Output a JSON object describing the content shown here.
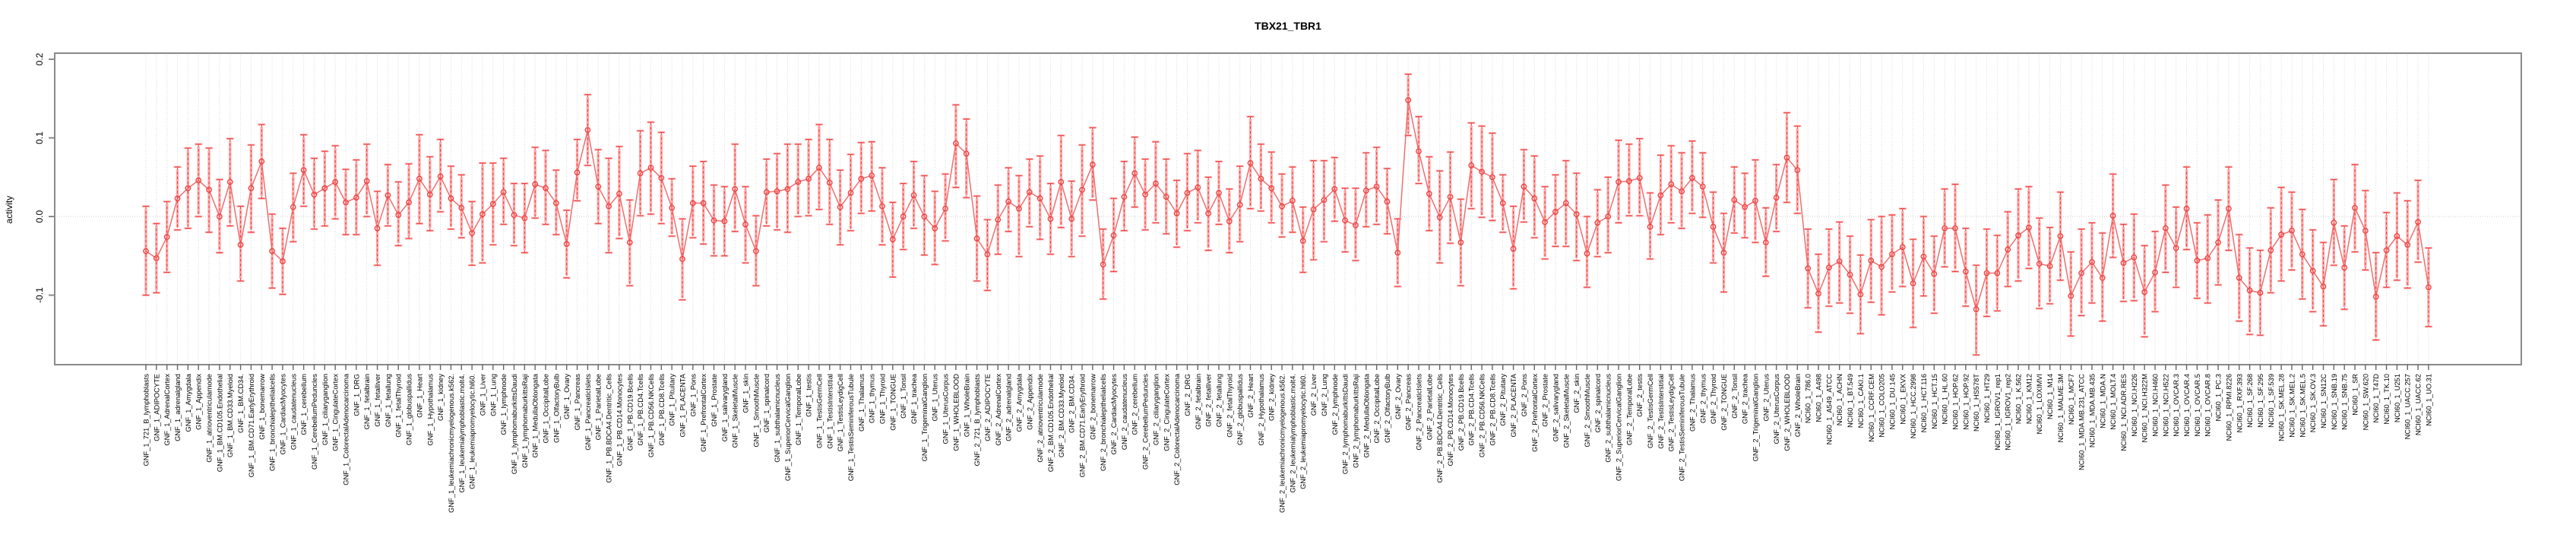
{
  "chart_data": {
    "type": "pointrange",
    "title": "TBX21_TBR1",
    "ylabel": "activity",
    "xlabel": "",
    "ylim": [
      -0.19,
      0.21
    ],
    "yticks": [
      0.2,
      0.1,
      0.0,
      -0.1
    ],
    "ytick_labels": [
      "0.2",
      "0.1",
      "0.0",
      "-0.1"
    ],
    "grid": "vertical-dotted-per-category-plus-zero-line",
    "legend_position": "none",
    "colors": {
      "point_and_ci": "#ee4444",
      "ci_band_thick": "#ffaaaa",
      "connect_line": "#ef6f6f",
      "frame": "#8a8a8a",
      "gridline": "#d9d9d9",
      "zero_line": "#cccccc",
      "tick": "#666666",
      "text": "#000000",
      "background": "#ffffff"
    },
    "groups": [
      {
        "prefix": "GNF_1_",
        "tissues": [
          "721_B_lymphoblasts",
          "ADIPOCYTE",
          "AdrenalCortex",
          "adrenalgland",
          "Amygdala",
          "Appendix",
          "atrioventricularnode",
          "BM.CD105.Endothelial",
          "BM.CD33.Myeloid",
          "BM.CD34.",
          "BM.CD71.EarlyErythroid",
          "bonemarrow",
          "bronchialepithelialcells",
          "CardiacMyocytes",
          "caudatenucleus",
          "cerebellum",
          "CerebellumPeduncles",
          "ciliaryganglion",
          "CingulateCortex",
          "ColorectalAdenocarcinoma",
          "DRG",
          "fetalbrain",
          "fetalliver",
          "fetallung",
          "fetalThyroid",
          "globuspallidus",
          "Heart",
          "Hypothalamus",
          "kidney",
          "leukemiachronicmyelogenous.k562.",
          "leukemialymphoblastic.molt4.",
          "leukemiapromyelocytic.hl60.",
          "Liver",
          "Lung",
          "lymphnode",
          "lymphomaburkittsDaudi",
          "lymphomaburkittsRaji",
          "MedullaOblongata",
          "OccipitalLobe",
          "OlfactoryBulb",
          "Ovary",
          "Pancreas",
          "PancreaticIslets",
          "ParietalLobe",
          "PB.BDCA4.Dentritic_Cells",
          "PB.CD14.Monocytes",
          "PB.CD19.Bcells",
          "PB.CD4.Tcells",
          "PB.CD56.NKCells",
          "PB.CD8.Tcells",
          "Pituitary",
          "PLACENTA",
          "Pons",
          "PrefrontalCortex",
          "Prostate",
          "salivarygland",
          "SkeletalMuscle",
          "skin",
          "SmoothMuscle",
          "spinalcord",
          "subthalamicnucleus",
          "SuperiorCervicalGanglion",
          "TemporalLobe",
          "testis",
          "TestisGermCell",
          "TestisInterstitial",
          "TestisLeydigCell",
          "TestisSeminiferousTubule",
          "Thalamus",
          "thymus",
          "Thyroid",
          "TONGUE",
          "Tonsil",
          "trachea",
          "TrigeminalGanglion",
          "Uterus",
          "UterusCorpus",
          "WHOLEBLOOD",
          "WholeBrain"
        ],
        "values": [
          -0.044,
          -0.053,
          -0.026,
          0.023,
          0.036,
          0.046,
          0.034,
          0.0,
          0.044,
          -0.036,
          0.036,
          0.07,
          -0.044,
          -0.057,
          0.012,
          0.059,
          0.028,
          0.036,
          0.044,
          0.018,
          0.024,
          0.045,
          -0.015,
          0.027,
          0.002,
          0.018,
          0.048,
          0.028,
          0.051,
          0.023,
          0.011,
          -0.021,
          0.003,
          0.016,
          0.031,
          0.002,
          -0.002,
          0.041,
          0.036,
          0.017,
          -0.035,
          0.056,
          0.11,
          0.038,
          0.013,
          0.029,
          -0.033,
          0.055,
          0.062,
          0.049,
          0.011,
          -0.054,
          0.017,
          0.017,
          -0.005,
          -0.006,
          0.035,
          -0.01,
          -0.044,
          0.031,
          0.032,
          0.035,
          0.044,
          0.048,
          0.062,
          0.043,
          0.012,
          0.03,
          0.048,
          0.052,
          0.013,
          -0.029,
          0.0,
          0.027,
          0.0,
          -0.015,
          0.01,
          0.093,
          0.08
        ],
        "lo": [
          -0.1,
          -0.097,
          -0.071,
          -0.017,
          -0.015,
          0.0,
          -0.02,
          -0.046,
          -0.012,
          -0.082,
          -0.02,
          0.023,
          -0.091,
          -0.099,
          -0.032,
          0.013,
          -0.016,
          -0.012,
          -0.003,
          -0.023,
          -0.023,
          0.0,
          -0.062,
          -0.012,
          -0.037,
          -0.028,
          -0.009,
          -0.018,
          0.006,
          -0.016,
          -0.027,
          -0.062,
          -0.059,
          -0.036,
          -0.01,
          -0.037,
          -0.046,
          -0.002,
          -0.01,
          -0.023,
          -0.078,
          0.02,
          0.065,
          -0.009,
          -0.046,
          -0.028,
          -0.088,
          0.001,
          0.003,
          -0.009,
          -0.025,
          -0.106,
          -0.027,
          -0.035,
          -0.05,
          -0.05,
          -0.019,
          -0.059,
          -0.088,
          -0.012,
          -0.017,
          -0.02,
          0.0,
          0.001,
          0.009,
          -0.01,
          -0.036,
          -0.018,
          0.004,
          0.007,
          -0.036,
          -0.077,
          -0.042,
          -0.015,
          -0.049,
          -0.061,
          -0.031,
          0.037,
          0.024
        ],
        "hi": [
          0.013,
          -0.009,
          0.019,
          0.063,
          0.087,
          0.092,
          0.087,
          0.047,
          0.099,
          0.013,
          0.091,
          0.117,
          0.003,
          -0.015,
          0.055,
          0.104,
          0.074,
          0.083,
          0.09,
          0.06,
          0.072,
          0.092,
          0.032,
          0.066,
          0.044,
          0.067,
          0.104,
          0.076,
          0.098,
          0.064,
          0.053,
          0.019,
          0.068,
          0.068,
          0.074,
          0.042,
          0.042,
          0.088,
          0.084,
          0.059,
          0.008,
          0.098,
          0.155,
          0.085,
          0.074,
          0.089,
          0.021,
          0.109,
          0.12,
          0.107,
          0.048,
          -0.003,
          0.064,
          0.07,
          0.04,
          0.038,
          0.092,
          0.038,
          0.001,
          0.073,
          0.08,
          0.092,
          0.092,
          0.098,
          0.117,
          0.098,
          0.059,
          0.079,
          0.094,
          0.095,
          0.062,
          0.018,
          0.042,
          0.07,
          0.052,
          0.032,
          0.054,
          0.142,
          0.124
        ]
      },
      {
        "prefix": "GNF_2_",
        "tissues": [
          "721_B_lymphoblasts",
          "ADIPOCYTE",
          "AdrenalCortex",
          "adrenalgland",
          "Amygdala",
          "Appendix",
          "atrioventricularnode",
          "BM.CD105.Endothelial",
          "BM.CD33.Myeloid",
          "BM.CD34.",
          "BM.CD71.EarlyErythroid",
          "bonemarrow",
          "bronchialepithelialcells",
          "CardiacMyocytes",
          "caudatenucleus",
          "cerebellum",
          "CerebellumPeduncles",
          "ciliaryganglion",
          "CingulateCortex",
          "ColorectalAdenocarcinoma",
          "DRG",
          "fetalbrain",
          "fetalliver",
          "fetallung",
          "fetalThyroid",
          "globuspallidus",
          "Heart",
          "Hypothalamus",
          "kidney",
          "leukemiachronicmyelogenous.k562.",
          "leukemialymphoblastic.molt4.",
          "leukemiapromyelocytic.hl60.",
          "Liver",
          "Lung",
          "lymphnode",
          "lymphomaburkittsDaudi",
          "lymphomaburkittsRaji",
          "MedullaOblongata",
          "OccipitalLobe",
          "OlfactoryBulb",
          "Ovary",
          "Pancreas",
          "PancreaticIslets",
          "ParietalLobe",
          "PB.BDCA4.Dentritic_Cells",
          "PB.CD14.Monocytes",
          "PB.CD19.Bcells",
          "PB.CD4.Tcells",
          "PB.CD56.NKCells",
          "PB.CD8.Tcells",
          "Pituitary",
          "PLACENTA",
          "Pons",
          "PrefrontalCortex",
          "Prostate",
          "salivarygland",
          "SkeletalMuscle",
          "skin",
          "SmoothMuscle",
          "spinalcord",
          "subthalamicnucleus",
          "SuperiorCervicalGanglion",
          "TemporalLobe",
          "testis",
          "TestisGermCell",
          "TestisInterstitial",
          "TestisLeydigCell",
          "TestisSeminiferousTubule",
          "Thalamus",
          "thymus",
          "Thyroid",
          "TONGUE",
          "Tonsil",
          "trachea",
          "TrigeminalGanglion",
          "Uterus",
          "UterusCorpus",
          "WHOLEBLOOD",
          "WholeBrain"
        ],
        "values": [
          -0.028,
          -0.048,
          -0.004,
          0.019,
          0.01,
          0.031,
          0.023,
          -0.003,
          0.044,
          -0.003,
          0.034,
          0.066,
          -0.061,
          -0.024,
          0.025,
          0.055,
          0.028,
          0.042,
          0.025,
          0.004,
          0.03,
          0.037,
          0.004,
          0.03,
          -0.006,
          0.015,
          0.068,
          0.048,
          0.036,
          0.013,
          0.02,
          -0.031,
          0.009,
          0.021,
          0.035,
          -0.005,
          -0.011,
          0.033,
          0.038,
          0.019,
          -0.046,
          0.148,
          0.083,
          0.029,
          -0.001,
          0.025,
          -0.033,
          0.065,
          0.057,
          0.05,
          0.017,
          -0.041,
          0.038,
          0.023,
          -0.007,
          0.006,
          0.017,
          0.003,
          -0.047,
          -0.008,
          0.0,
          0.044,
          0.045,
          0.049,
          -0.013,
          0.027,
          0.041,
          0.032,
          0.049,
          0.038,
          -0.013,
          -0.046,
          0.021,
          0.012,
          0.02,
          -0.033,
          0.024,
          0.075,
          0.059
        ],
        "lo": [
          -0.082,
          -0.094,
          -0.048,
          -0.019,
          -0.051,
          -0.013,
          -0.029,
          -0.048,
          -0.014,
          -0.051,
          -0.025,
          0.021,
          -0.105,
          -0.07,
          -0.018,
          0.012,
          -0.017,
          -0.008,
          -0.022,
          -0.039,
          -0.018,
          -0.008,
          -0.043,
          -0.01,
          -0.046,
          -0.032,
          0.01,
          0.007,
          -0.008,
          -0.026,
          -0.02,
          -0.071,
          -0.055,
          -0.032,
          -0.006,
          -0.045,
          -0.056,
          -0.013,
          -0.01,
          -0.022,
          -0.089,
          0.103,
          0.042,
          -0.018,
          -0.059,
          -0.034,
          -0.088,
          0.01,
          -0.001,
          -0.005,
          -0.02,
          -0.092,
          -0.007,
          -0.027,
          -0.054,
          -0.038,
          -0.038,
          -0.056,
          -0.09,
          -0.051,
          -0.046,
          -0.008,
          0.001,
          0.001,
          -0.054,
          -0.023,
          -0.008,
          -0.015,
          0.004,
          -0.001,
          -0.059,
          -0.096,
          -0.021,
          -0.027,
          -0.033,
          -0.076,
          -0.019,
          0.018,
          0.004
        ],
        "hi": [
          0.026,
          -0.004,
          0.04,
          0.062,
          0.052,
          0.073,
          0.077,
          0.042,
          0.103,
          0.045,
          0.091,
          0.113,
          -0.016,
          0.023,
          0.07,
          0.101,
          0.073,
          0.095,
          0.073,
          0.046,
          0.08,
          0.084,
          0.05,
          0.07,
          0.035,
          0.064,
          0.127,
          0.092,
          0.082,
          0.054,
          0.063,
          0.012,
          0.071,
          0.071,
          0.075,
          0.036,
          0.036,
          0.081,
          0.088,
          0.061,
          -0.003,
          0.181,
          0.127,
          0.076,
          0.058,
          0.082,
          0.022,
          0.119,
          0.115,
          0.106,
          0.053,
          0.013,
          0.085,
          0.077,
          0.038,
          0.053,
          0.071,
          0.055,
          0.0,
          0.034,
          0.05,
          0.097,
          0.092,
          0.099,
          0.03,
          0.078,
          0.09,
          0.081,
          0.096,
          0.081,
          0.031,
          0.004,
          0.063,
          0.055,
          0.072,
          0.011,
          0.066,
          0.132,
          0.115
        ]
      },
      {
        "prefix": "NCI60_1_",
        "tissues": [
          "786.0",
          "A498",
          "A549_ATCC",
          "ACHN",
          "BT.549",
          "CAKI.1",
          "CCRF.CEM",
          "COLO205",
          "DU.145",
          "EKVX",
          "HCC.2998",
          "HCT.116",
          "HCT.15",
          "HL.60",
          "HOP.62",
          "HOP.92",
          "HS578T",
          "HT29",
          "IGROV1_rep1",
          "IGROV1_rep2",
          "K.562",
          "KM12",
          "LOXIMVI",
          "M14",
          "MALME.3M",
          "MCF7",
          "MDA.MB.231_ATCC",
          "MDA.MB.435",
          "MDA.N",
          "MOLT.4",
          "NCI.ADR.RES",
          "NCI.H226",
          "NCI.H322M",
          "NCI.H460",
          "NCI.H522",
          "OVCAR.3",
          "OVCAR.4",
          "OVCAR.5",
          "OVCAR.8",
          "PC.3",
          "RPMI.8226",
          "RXF.393",
          "SF.268",
          "SF.295",
          "SF.539",
          "SK.MEL.28",
          "SK.MEL.2",
          "SK.MEL.5",
          "SK.OV.3",
          "SN12C",
          "SNB.19",
          "SNB.75",
          "SR",
          "SW.620",
          "T47D",
          "TK.10",
          "U251",
          "UACC.257",
          "UACC.62",
          "UO.31"
        ],
        "values": [
          -0.066,
          -0.098,
          -0.065,
          -0.057,
          -0.074,
          -0.099,
          -0.056,
          -0.064,
          -0.048,
          -0.039,
          -0.085,
          -0.051,
          -0.073,
          -0.015,
          -0.015,
          -0.07,
          -0.118,
          -0.072,
          -0.072,
          -0.042,
          -0.024,
          -0.014,
          -0.06,
          -0.063,
          -0.025,
          -0.101,
          -0.072,
          -0.058,
          -0.078,
          0.001,
          -0.059,
          -0.052,
          -0.096,
          -0.071,
          -0.015,
          -0.04,
          0.01,
          -0.056,
          -0.053,
          -0.033,
          0.01,
          -0.078,
          -0.094,
          -0.097,
          -0.043,
          -0.023,
          -0.018,
          -0.048,
          -0.069,
          -0.089,
          -0.008,
          -0.065,
          0.011,
          -0.018,
          -0.102,
          -0.043,
          -0.025,
          -0.036,
          -0.007,
          -0.09
        ],
        "lo": [
          -0.116,
          -0.147,
          -0.114,
          -0.11,
          -0.123,
          -0.149,
          -0.109,
          -0.125,
          -0.096,
          -0.089,
          -0.141,
          -0.101,
          -0.123,
          -0.064,
          -0.07,
          -0.114,
          -0.176,
          -0.127,
          -0.12,
          -0.089,
          -0.082,
          -0.066,
          -0.117,
          -0.111,
          -0.081,
          -0.152,
          -0.126,
          -0.11,
          -0.133,
          -0.052,
          -0.108,
          -0.107,
          -0.153,
          -0.121,
          -0.071,
          -0.09,
          -0.042,
          -0.104,
          -0.11,
          -0.087,
          -0.043,
          -0.133,
          -0.15,
          -0.151,
          -0.097,
          -0.082,
          -0.068,
          -0.105,
          -0.121,
          -0.139,
          -0.062,
          -0.118,
          -0.045,
          -0.068,
          -0.157,
          -0.09,
          -0.081,
          -0.091,
          -0.058,
          -0.14
        ],
        "hi": [
          -0.016,
          -0.048,
          -0.016,
          -0.007,
          -0.025,
          -0.049,
          -0.004,
          0.0,
          0.002,
          0.01,
          -0.029,
          0.0,
          -0.025,
          0.035,
          0.041,
          -0.015,
          -0.062,
          -0.016,
          -0.024,
          0.006,
          0.035,
          0.038,
          -0.002,
          -0.014,
          0.031,
          -0.045,
          -0.016,
          -0.008,
          -0.021,
          0.054,
          -0.01,
          0.003,
          -0.037,
          -0.019,
          0.04,
          0.012,
          0.063,
          -0.008,
          0.002,
          0.021,
          0.063,
          -0.023,
          -0.04,
          -0.043,
          0.011,
          0.037,
          0.031,
          0.009,
          -0.017,
          -0.033,
          0.047,
          -0.012,
          0.066,
          0.033,
          -0.046,
          0.005,
          0.03,
          0.02,
          0.046,
          -0.04
        ]
      }
    ]
  }
}
